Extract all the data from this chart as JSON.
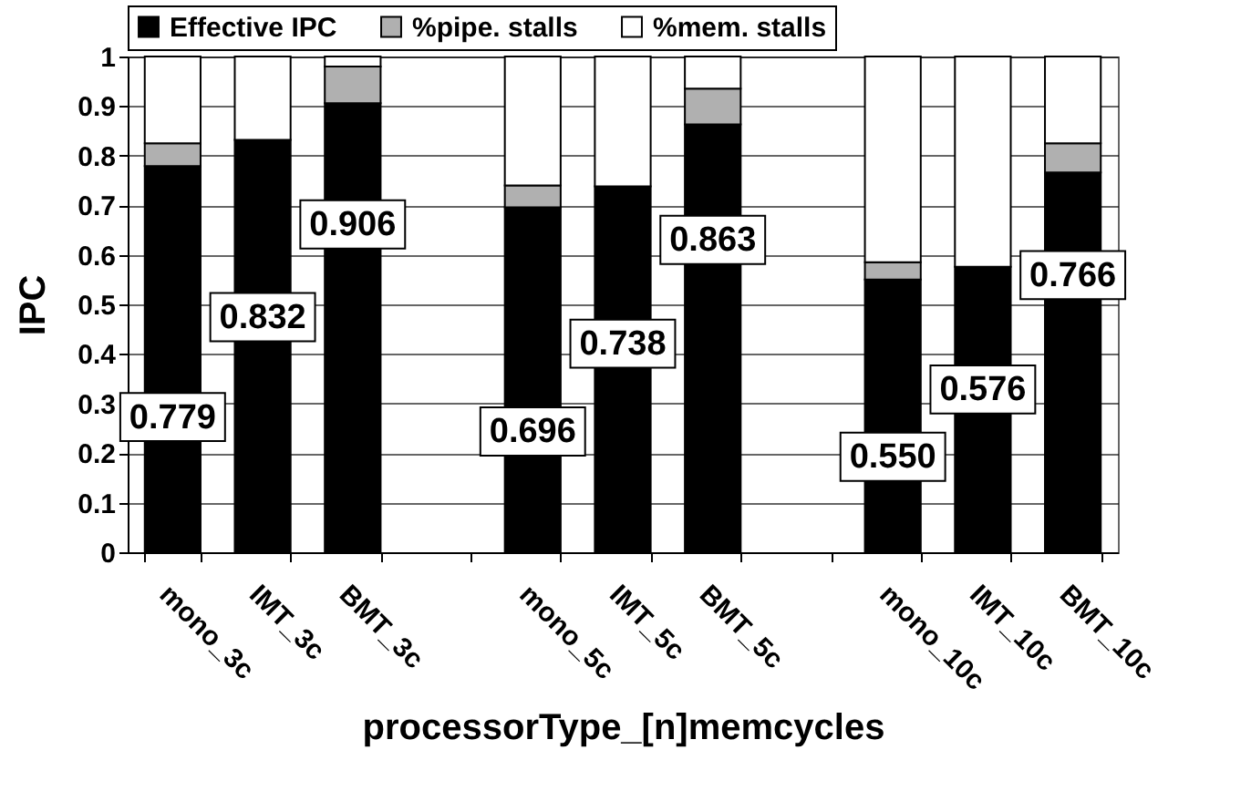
{
  "chart_data": {
    "type": "bar",
    "stacked": true,
    "xlabel": "processorType_[n]memcycles",
    "ylabel": "IPC",
    "categories": [
      "mono_3c",
      "IMT_3c",
      "BMT_3c",
      null,
      "mono_5c",
      "IMT_5c",
      "BMT_5c",
      null,
      "mono_10c",
      "IMT_10c",
      "BMT_10c"
    ],
    "series": [
      {
        "name": "Effective IPC",
        "color": "#000000",
        "values": [
          0.779,
          0.832,
          0.906,
          null,
          0.696,
          0.738,
          0.863,
          null,
          0.55,
          0.576,
          0.766
        ],
        "value_labels": [
          "0.779",
          "0.832",
          "0.906",
          null,
          "0.696",
          "0.738",
          "0.863",
          null,
          "0.550",
          "0.576",
          "0.766"
        ]
      },
      {
        "name": "%pipe. stalls",
        "color": "#b0b0b0",
        "values": [
          0.046,
          0,
          0.074,
          null,
          0.044,
          0,
          0.072,
          null,
          0.035,
          0,
          0.059
        ]
      },
      {
        "name": "%mem. stalls",
        "color": "#ffffff",
        "values": [
          0.175,
          0.168,
          0.02,
          null,
          0.26,
          0.262,
          0.065,
          null,
          0.415,
          0.424,
          0.175
        ]
      }
    ],
    "ylim": [
      0,
      1
    ],
    "yticks": [
      0,
      0.1,
      0.2,
      0.3,
      0.4,
      0.5,
      0.6,
      0.7,
      0.8,
      0.9,
      1
    ],
    "grid": "y",
    "legend": "top"
  }
}
